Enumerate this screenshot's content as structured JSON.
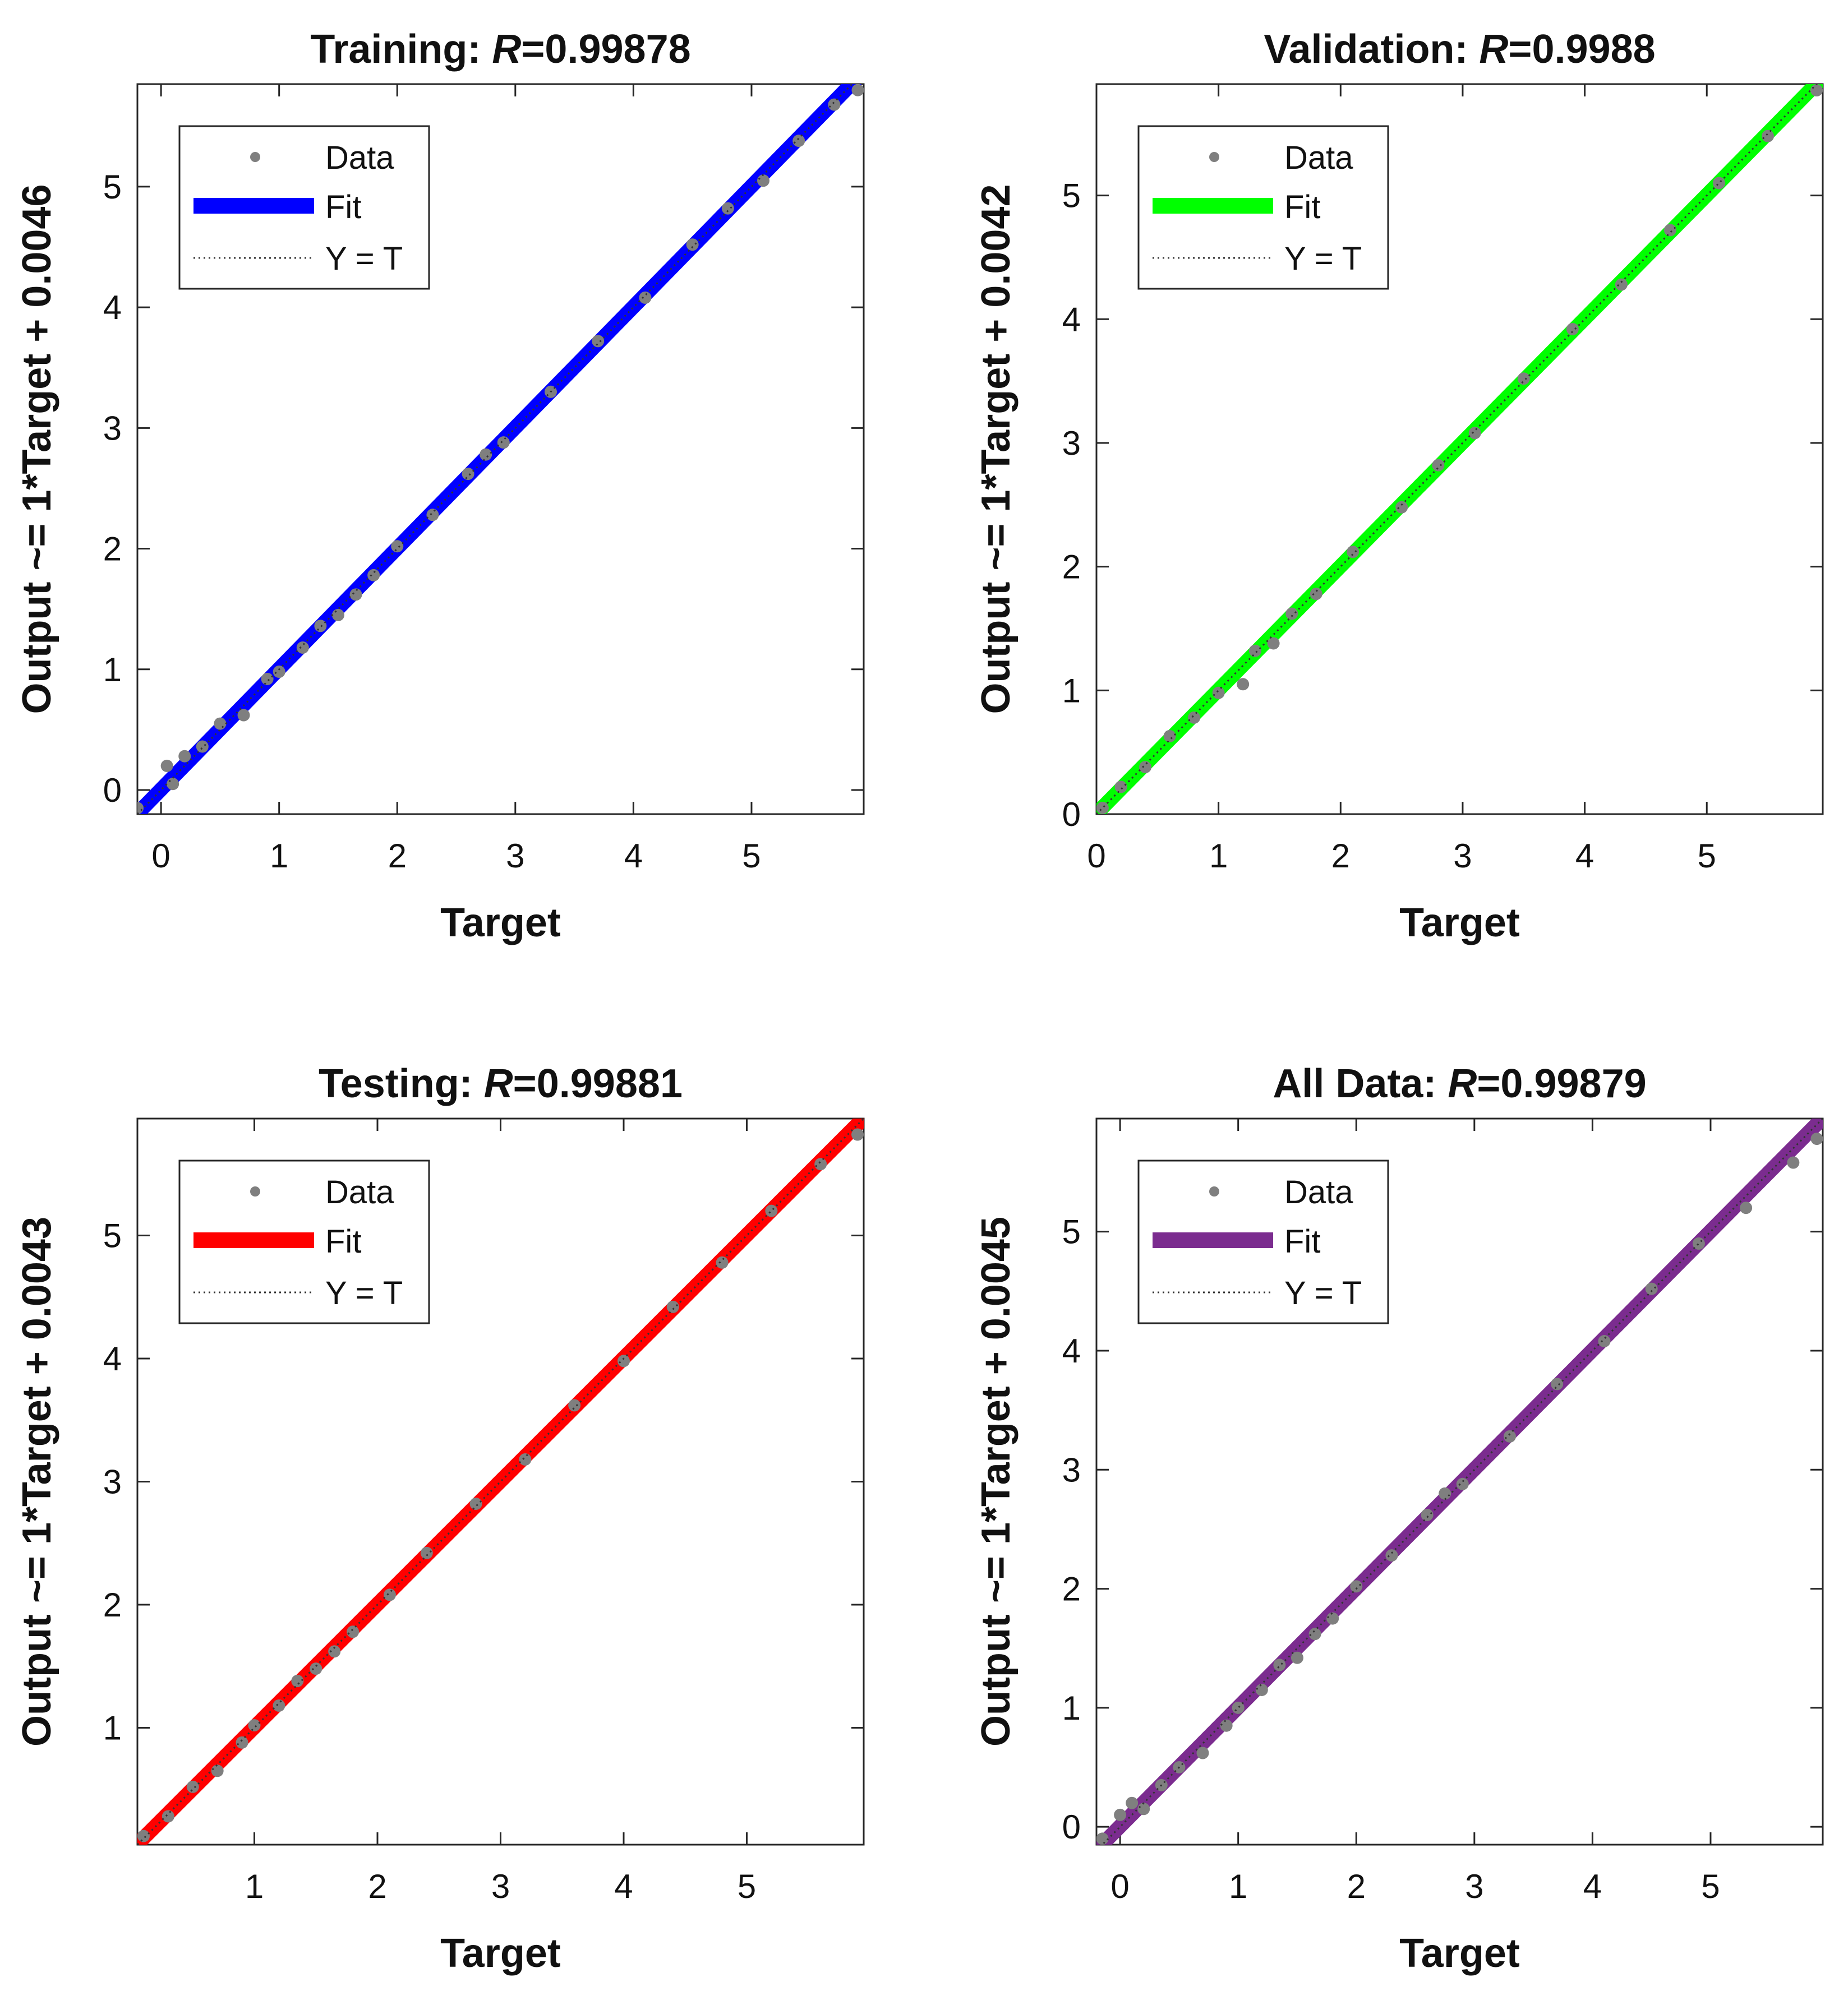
{
  "figure": {
    "legend_labels": {
      "data": "Data",
      "fit": "Fit",
      "identity": "Y = T"
    },
    "xlabel": "Target",
    "data_color": "#7f7f7f"
  },
  "chart_data": [
    {
      "type": "scatter",
      "title_prefix": "Training: ",
      "title_r_symbol": "R",
      "title_r_value": "=0.99878",
      "xlabel": "Target",
      "ylabel": "Output ~= 1*Target + 0.0046",
      "fit_color": "#0000ff",
      "xlim": [
        -0.2,
        5.95
      ],
      "ylim": [
        -0.2,
        5.85
      ],
      "xticks": [
        0,
        1,
        2,
        3,
        4,
        5
      ],
      "yticks": [
        0,
        1,
        2,
        3,
        4,
        5
      ],
      "fit": {
        "slope": 1,
        "intercept": 0.0046
      },
      "legend_position": "top-left",
      "series": [
        {
          "label": "Data",
          "x": [
            -0.2,
            0.05,
            0.1,
            0.2,
            0.35,
            0.5,
            0.7,
            0.9,
            1.0,
            1.2,
            1.35,
            1.5,
            1.65,
            1.8,
            2.0,
            2.3,
            2.6,
            2.75,
            2.9,
            3.3,
            3.7,
            4.1,
            4.5,
            4.8,
            5.1,
            5.4,
            5.7,
            5.9
          ],
          "y": [
            -0.15,
            0.2,
            0.05,
            0.28,
            0.36,
            0.55,
            0.62,
            0.92,
            0.98,
            1.18,
            1.36,
            1.45,
            1.62,
            1.78,
            2.02,
            2.28,
            2.62,
            2.78,
            2.88,
            3.3,
            3.72,
            4.08,
            4.52,
            4.82,
            5.05,
            5.38,
            5.68,
            5.8
          ]
        }
      ]
    },
    {
      "type": "scatter",
      "title_prefix": "Validation: ",
      "title_r_symbol": "R",
      "title_r_value": "=0.9988",
      "xlabel": "Target",
      "ylabel": "Output ~= 1*Target + 0.0042",
      "fit_color": "#00ff00",
      "xlim": [
        0,
        5.95
      ],
      "ylim": [
        0,
        5.9
      ],
      "xticks": [
        0,
        1,
        2,
        3,
        4,
        5
      ],
      "yticks": [
        0,
        1,
        2,
        3,
        4,
        5
      ],
      "fit": {
        "slope": 1,
        "intercept": 0.0042
      },
      "legend_position": "top-left",
      "series": [
        {
          "label": "Data",
          "x": [
            0.05,
            0.2,
            0.4,
            0.6,
            0.8,
            1.0,
            1.2,
            1.3,
            1.45,
            1.6,
            1.8,
            2.1,
            2.5,
            2.8,
            3.1,
            3.5,
            3.9,
            4.3,
            4.7,
            5.1,
            5.5,
            5.9
          ],
          "y": [
            0.05,
            0.22,
            0.38,
            0.63,
            0.78,
            0.98,
            1.05,
            1.32,
            1.38,
            1.62,
            1.78,
            2.12,
            2.48,
            2.82,
            3.08,
            3.52,
            3.92,
            4.28,
            4.72,
            5.1,
            5.48,
            5.85
          ]
        }
      ]
    },
    {
      "type": "scatter",
      "title_prefix": "Testing: ",
      "title_r_symbol": "R",
      "title_r_value": "=0.99881",
      "xlabel": "Target",
      "ylabel": "Output ~= 1*Target + 0.0043",
      "fit_color": "#ff0000",
      "xlim": [
        0.05,
        5.95
      ],
      "ylim": [
        0.05,
        5.95
      ],
      "xticks": [
        1,
        2,
        3,
        4,
        5
      ],
      "yticks": [
        1,
        2,
        3,
        4,
        5
      ],
      "fit": {
        "slope": 1,
        "intercept": 0.0043
      },
      "legend_position": "top-left",
      "series": [
        {
          "label": "Data",
          "x": [
            0.1,
            0.3,
            0.5,
            0.7,
            0.9,
            1.0,
            1.2,
            1.35,
            1.5,
            1.65,
            1.8,
            2.1,
            2.4,
            2.8,
            3.2,
            3.6,
            4.0,
            4.4,
            4.8,
            5.2,
            5.6,
            5.9
          ],
          "y": [
            0.12,
            0.28,
            0.52,
            0.65,
            0.88,
            1.02,
            1.18,
            1.38,
            1.48,
            1.62,
            1.78,
            2.08,
            2.42,
            2.82,
            3.18,
            3.62,
            3.98,
            4.42,
            4.78,
            5.2,
            5.58,
            5.82
          ]
        }
      ]
    },
    {
      "type": "scatter",
      "title_prefix": "All Data: ",
      "title_r_symbol": "R",
      "title_r_value": "=0.99879",
      "xlabel": "Target",
      "ylabel": "Output ~= 1*Target + 0.0045",
      "fit_color": "#7b2c8f",
      "xlim": [
        -0.2,
        5.95
      ],
      "ylim": [
        -0.15,
        5.95
      ],
      "xticks": [
        0,
        1,
        2,
        3,
        4,
        5
      ],
      "yticks": [
        0,
        1,
        2,
        3,
        4,
        5
      ],
      "fit": {
        "slope": 1,
        "intercept": 0.0045
      },
      "legend_position": "top-left",
      "series": [
        {
          "label": "Data",
          "x": [
            -0.15,
            0.0,
            0.1,
            0.2,
            0.35,
            0.5,
            0.7,
            0.9,
            1.0,
            1.2,
            1.35,
            1.5,
            1.65,
            1.8,
            2.0,
            2.3,
            2.6,
            2.75,
            2.9,
            3.3,
            3.7,
            4.1,
            4.5,
            4.9,
            5.3,
            5.7,
            5.9
          ],
          "y": [
            -0.1,
            0.1,
            0.2,
            0.15,
            0.35,
            0.5,
            0.62,
            0.85,
            1.0,
            1.15,
            1.36,
            1.42,
            1.62,
            1.75,
            2.02,
            2.28,
            2.62,
            2.8,
            2.88,
            3.28,
            3.72,
            4.08,
            4.52,
            4.9,
            5.2,
            5.58,
            5.78
          ]
        }
      ]
    }
  ]
}
